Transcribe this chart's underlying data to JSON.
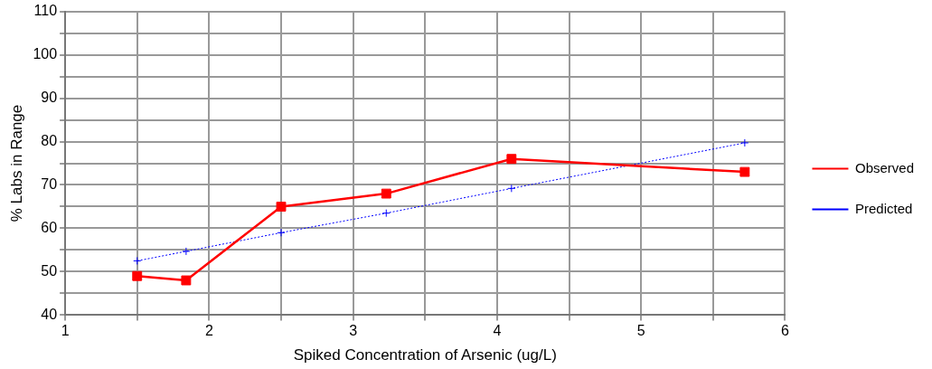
{
  "chart_data": {
    "type": "line",
    "xlabel": "Spiked Concentration of Arsenic (ug/L)",
    "ylabel": "% Labs in Range",
    "x": [
      1.5,
      1.84,
      2.5,
      3.23,
      4.1,
      5.72
    ],
    "series": [
      {
        "name": "Observed",
        "color": "#ff0000",
        "values": [
          49,
          48,
          65,
          68,
          76,
          73
        ],
        "marker": "square",
        "line_style": "solid"
      },
      {
        "name": "Predicted",
        "color": "#0000ff",
        "values": [
          52.5,
          54.7,
          59,
          63.5,
          69.2,
          79.7
        ],
        "marker": "cross",
        "line_style": "dotted"
      }
    ],
    "xlim": [
      1,
      6
    ],
    "xticks": [
      1,
      {
        "value": 1.5,
        "label": null
      },
      2,
      {
        "value": 2.5,
        "label": null
      },
      3,
      {
        "value": 3.5,
        "label": null
      },
      4,
      {
        "value": 4.5,
        "label": null
      },
      5,
      {
        "value": 5.5,
        "label": null
      },
      6
    ],
    "ylim": [
      40,
      110
    ],
    "yticks": [
      40,
      {
        "value": 45,
        "label": null
      },
      50,
      {
        "value": 55,
        "label": null
      },
      60,
      {
        "value": 65,
        "label": null
      },
      70,
      {
        "value": 75,
        "label": null
      },
      80,
      {
        "value": 85,
        "label": null
      },
      90,
      {
        "value": 95,
        "label": null
      },
      100,
      {
        "value": 105,
        "label": null
      },
      110
    ],
    "grid": true,
    "legend": "right"
  }
}
